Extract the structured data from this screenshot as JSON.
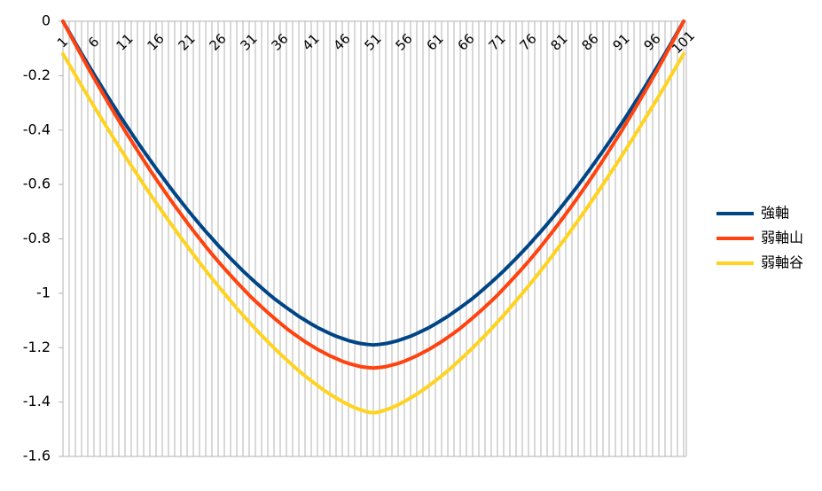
{
  "chart_data": {
    "type": "line",
    "categories": [
      1,
      null,
      null,
      null,
      null,
      6,
      null,
      null,
      null,
      null,
      11,
      null,
      null,
      null,
      null,
      16,
      null,
      null,
      null,
      null,
      21,
      null,
      null,
      null,
      null,
      26,
      null,
      null,
      null,
      null,
      31,
      null,
      null,
      null,
      null,
      36,
      null,
      null,
      null,
      null,
      41,
      null,
      null,
      null,
      null,
      46,
      null,
      null,
      null,
      null,
      51,
      null,
      null,
      null,
      null,
      56,
      null,
      null,
      null,
      null,
      61,
      null,
      null,
      null,
      null,
      66,
      null,
      null,
      null,
      null,
      71,
      null,
      null,
      null,
      null,
      76,
      null,
      null,
      null,
      null,
      81,
      null,
      null,
      null,
      null,
      86,
      null,
      null,
      null,
      null,
      91,
      null,
      null,
      null,
      null,
      96,
      null,
      null,
      null,
      null,
      101
    ],
    "series": [
      {
        "name": "強軸",
        "color": "#004586",
        "values": [
          0,
          -0.04,
          -0.08,
          -0.119,
          -0.157,
          -0.195,
          -0.232,
          -0.269,
          -0.305,
          -0.341,
          -0.376,
          -0.41,
          -0.444,
          -0.477,
          -0.509,
          -0.541,
          -0.572,
          -0.603,
          -0.633,
          -0.662,
          -0.691,
          -0.719,
          -0.746,
          -0.773,
          -0.798,
          -0.824,
          -0.848,
          -0.872,
          -0.895,
          -0.918,
          -0.939,
          -0.96,
          -0.98,
          -1.0,
          -1.019,
          -1.036,
          -1.053,
          -1.069,
          -1.085,
          -1.099,
          -1.113,
          -1.126,
          -1.137,
          -1.148,
          -1.158,
          -1.166,
          -1.174,
          -1.18,
          -1.185,
          -1.188,
          -1.19,
          -1.188,
          -1.185,
          -1.18,
          -1.174,
          -1.166,
          -1.158,
          -1.148,
          -1.137,
          -1.126,
          -1.113,
          -1.099,
          -1.085,
          -1.069,
          -1.053,
          -1.036,
          -1.019,
          -1.0,
          -0.98,
          -0.96,
          -0.939,
          -0.918,
          -0.895,
          -0.872,
          -0.848,
          -0.824,
          -0.798,
          -0.773,
          -0.746,
          -0.719,
          -0.691,
          -0.662,
          -0.633,
          -0.603,
          -0.572,
          -0.541,
          -0.509,
          -0.477,
          -0.444,
          -0.41,
          -0.376,
          -0.341,
          -0.305,
          -0.269,
          -0.232,
          -0.195,
          -0.157,
          -0.119,
          -0.08,
          -0.04,
          0
        ]
      },
      {
        "name": "弱軸山",
        "color": "#ff420e",
        "values": [
          0,
          -0.043,
          -0.085,
          -0.127,
          -0.169,
          -0.209,
          -0.249,
          -0.288,
          -0.327,
          -0.365,
          -0.403,
          -0.439,
          -0.475,
          -0.511,
          -0.546,
          -0.58,
          -0.613,
          -0.646,
          -0.678,
          -0.709,
          -0.74,
          -0.77,
          -0.799,
          -0.828,
          -0.856,
          -0.883,
          -0.909,
          -0.934,
          -0.959,
          -0.983,
          -1.007,
          -1.029,
          -1.05,
          -1.071,
          -1.091,
          -1.11,
          -1.129,
          -1.146,
          -1.162,
          -1.178,
          -1.192,
          -1.206,
          -1.218,
          -1.23,
          -1.24,
          -1.25,
          -1.258,
          -1.264,
          -1.27,
          -1.273,
          -1.275,
          -1.273,
          -1.27,
          -1.264,
          -1.258,
          -1.25,
          -1.24,
          -1.23,
          -1.218,
          -1.206,
          -1.192,
          -1.178,
          -1.162,
          -1.146,
          -1.129,
          -1.11,
          -1.091,
          -1.071,
          -1.05,
          -1.029,
          -1.007,
          -0.983,
          -0.959,
          -0.934,
          -0.909,
          -0.883,
          -0.856,
          -0.828,
          -0.799,
          -0.77,
          -0.74,
          -0.709,
          -0.678,
          -0.646,
          -0.613,
          -0.58,
          -0.546,
          -0.511,
          -0.475,
          -0.439,
          -0.403,
          -0.365,
          -0.327,
          -0.288,
          -0.249,
          -0.209,
          -0.169,
          -0.127,
          -0.085,
          -0.043,
          0
        ]
      },
      {
        "name": "弱軸谷",
        "color": "#ffd320",
        "values": [
          -0.12,
          -0.159,
          -0.198,
          -0.237,
          -0.275,
          -0.313,
          -0.35,
          -0.387,
          -0.424,
          -0.46,
          -0.496,
          -0.531,
          -0.565,
          -0.6,
          -0.634,
          -0.667,
          -0.7,
          -0.732,
          -0.764,
          -0.796,
          -0.826,
          -0.857,
          -0.887,
          -0.916,
          -0.945,
          -0.973,
          -1.001,
          -1.028,
          -1.055,
          -1.081,
          -1.106,
          -1.131,
          -1.155,
          -1.178,
          -1.201,
          -1.223,
          -1.244,
          -1.265,
          -1.285,
          -1.304,
          -1.322,
          -1.339,
          -1.356,
          -1.371,
          -1.385,
          -1.398,
          -1.41,
          -1.421,
          -1.429,
          -1.436,
          -1.44,
          -1.436,
          -1.429,
          -1.421,
          -1.41,
          -1.398,
          -1.385,
          -1.371,
          -1.356,
          -1.339,
          -1.322,
          -1.304,
          -1.285,
          -1.265,
          -1.244,
          -1.223,
          -1.201,
          -1.178,
          -1.155,
          -1.131,
          -1.106,
          -1.081,
          -1.055,
          -1.028,
          -1.001,
          -0.973,
          -0.945,
          -0.916,
          -0.887,
          -0.857,
          -0.826,
          -0.796,
          -0.764,
          -0.732,
          -0.7,
          -0.667,
          -0.634,
          -0.6,
          -0.565,
          -0.531,
          -0.496,
          -0.46,
          -0.424,
          -0.387,
          -0.35,
          -0.313,
          -0.275,
          -0.237,
          -0.198,
          -0.159,
          -0.12
        ]
      }
    ],
    "ylim": [
      -1.6,
      0
    ],
    "yticks": [
      0,
      -0.2,
      -0.4,
      -0.6,
      -0.8,
      -1,
      -1.2,
      -1.4,
      -1.6
    ],
    "legend": "right"
  }
}
